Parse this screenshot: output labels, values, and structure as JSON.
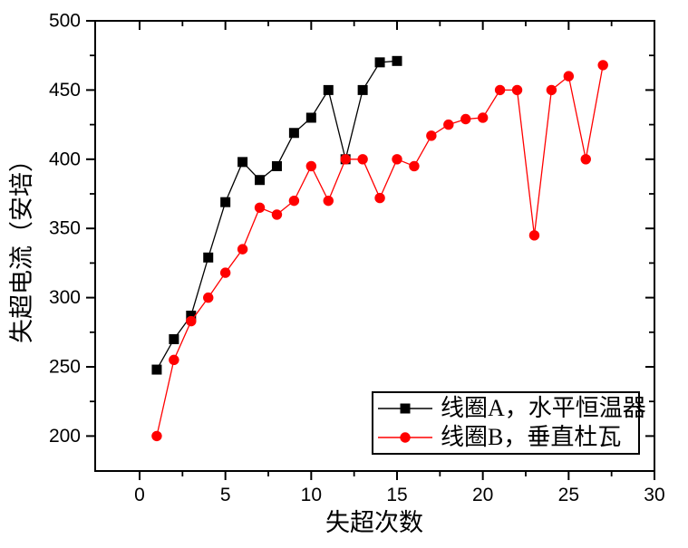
{
  "figure": {
    "background": "#ffffff",
    "frame_color": "#000000"
  },
  "chart_data": {
    "type": "line",
    "title": "",
    "xlabel": "失超次数",
    "ylabel": "失超电流（安培）",
    "xlim": [
      0,
      30
    ],
    "ylim": [
      200,
      500
    ],
    "x_major_ticks": [
      0,
      5,
      10,
      15,
      20,
      25,
      30
    ],
    "x_minor_step": 2.5,
    "y_major_ticks": [
      200,
      250,
      300,
      350,
      400,
      450,
      500
    ],
    "y_minor_step": 25,
    "grid": false,
    "legend_position": "inside-bottom-right",
    "series": [
      {
        "name": "线圈A，水平恒温器",
        "marker": "square",
        "color": "#000000",
        "x": [
          1,
          2,
          3,
          4,
          5,
          6,
          7,
          8,
          9,
          10,
          11,
          12,
          13,
          14,
          15
        ],
        "values": [
          248,
          270,
          287,
          329,
          369,
          398,
          385,
          395,
          419,
          430,
          450,
          400,
          450,
          470,
          471
        ]
      },
      {
        "name": "线圈B，垂直杜瓦",
        "marker": "circle",
        "color": "#ff0000",
        "x": [
          1,
          2,
          3,
          4,
          5,
          6,
          7,
          8,
          9,
          10,
          11,
          12,
          13,
          14,
          15,
          16,
          17,
          18,
          19,
          20,
          21,
          22,
          23,
          24,
          25,
          26,
          27
        ],
        "values": [
          200,
          255,
          283,
          300,
          318,
          335,
          365,
          360,
          370,
          395,
          370,
          400,
          400,
          372,
          400,
          395,
          417,
          425,
          429,
          430,
          450,
          450,
          345,
          450,
          460,
          400,
          468
        ]
      }
    ]
  }
}
